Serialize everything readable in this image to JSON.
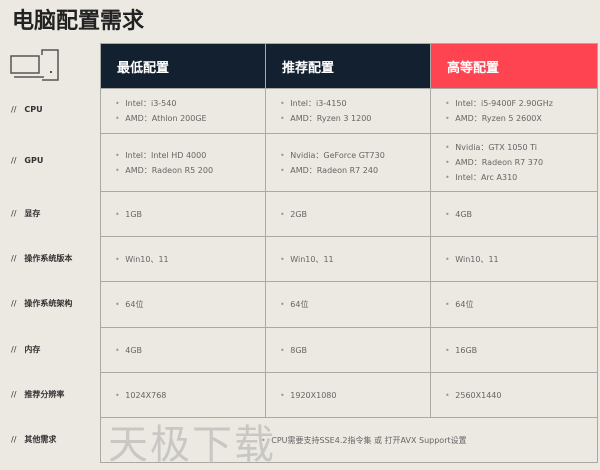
{
  "title": "电脑配置需求",
  "watermark": "天极下载",
  "prefix": "//",
  "headers": [
    "最低配置",
    "推荐配置",
    "高等配置"
  ],
  "accent": "#ff4451",
  "header_bg": "#13202f",
  "rows": [
    {
      "label": "CPU",
      "cells": [
        [
          "Intel：i3-540",
          "AMD：Athlon 200GE"
        ],
        [
          "Intel：i3-4150",
          "AMD：Ryzen 3 1200"
        ],
        [
          "Intel：i5-9400F 2.90GHz",
          "AMD：Ryzen 5 2600X"
        ]
      ]
    },
    {
      "label": "GPU",
      "cells": [
        [
          "Intel：Intel HD 4000",
          "AMD：Radeon R5 200"
        ],
        [
          "Nvidia：GeForce GT730",
          "AMD：Radeon R7 240"
        ],
        [
          "Nvidia：GTX 1050 Ti",
          "AMD：Radeon R7 370",
          "Intel：Arc A310"
        ]
      ]
    },
    {
      "label": "显存",
      "cells": [
        [
          "1GB"
        ],
        [
          "2GB"
        ],
        [
          "4GB"
        ]
      ]
    },
    {
      "label": "操作系统版本",
      "cells": [
        [
          "Win10、11"
        ],
        [
          "Win10、11"
        ],
        [
          "Win10、11"
        ]
      ]
    },
    {
      "label": "操作系统架构",
      "cells": [
        [
          "64位"
        ],
        [
          "64位"
        ],
        [
          "64位"
        ]
      ]
    },
    {
      "label": "内存",
      "cells": [
        [
          "4GB"
        ],
        [
          "8GB"
        ],
        [
          "16GB"
        ]
      ]
    },
    {
      "label": "推荐分辨率",
      "cells": [
        [
          "1024X768"
        ],
        [
          "1920X1080"
        ],
        [
          "2560X1440"
        ]
      ]
    },
    {
      "label": "其他需求",
      "merged": "CPU需要支持SSE4.2指令集 或 打开AVX Support设置"
    }
  ]
}
